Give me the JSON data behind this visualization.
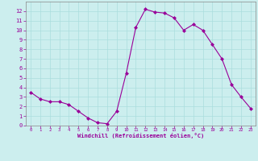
{
  "x": [
    0,
    1,
    2,
    3,
    4,
    5,
    6,
    7,
    8,
    9,
    10,
    11,
    12,
    13,
    14,
    15,
    16,
    17,
    18,
    19,
    20,
    21,
    22,
    23
  ],
  "y": [
    3.5,
    2.8,
    2.5,
    2.5,
    2.2,
    1.5,
    0.8,
    0.3,
    0.2,
    1.5,
    5.5,
    10.3,
    12.2,
    11.9,
    11.8,
    11.3,
    10.0,
    10.6,
    10.0,
    8.5,
    7.0,
    4.3,
    3.0,
    1.8
  ],
  "line_color": "#990099",
  "marker": "D",
  "marker_size": 2,
  "bg_color": "#cceeee",
  "grid_color": "#aadddd",
  "xlabel": "Windchill (Refroidissement éolien,°C)",
  "xlim": [
    -0.5,
    23.5
  ],
  "ylim": [
    0,
    13
  ],
  "xticks": [
    0,
    1,
    2,
    3,
    4,
    5,
    6,
    7,
    8,
    9,
    10,
    11,
    12,
    13,
    14,
    15,
    16,
    17,
    18,
    19,
    20,
    21,
    22,
    23
  ],
  "yticks": [
    0,
    1,
    2,
    3,
    4,
    5,
    6,
    7,
    8,
    9,
    10,
    11,
    12
  ],
  "xlabel_color": "#990099",
  "tick_color": "#990099",
  "axis_color": "#888888",
  "spine_color": "#888888"
}
